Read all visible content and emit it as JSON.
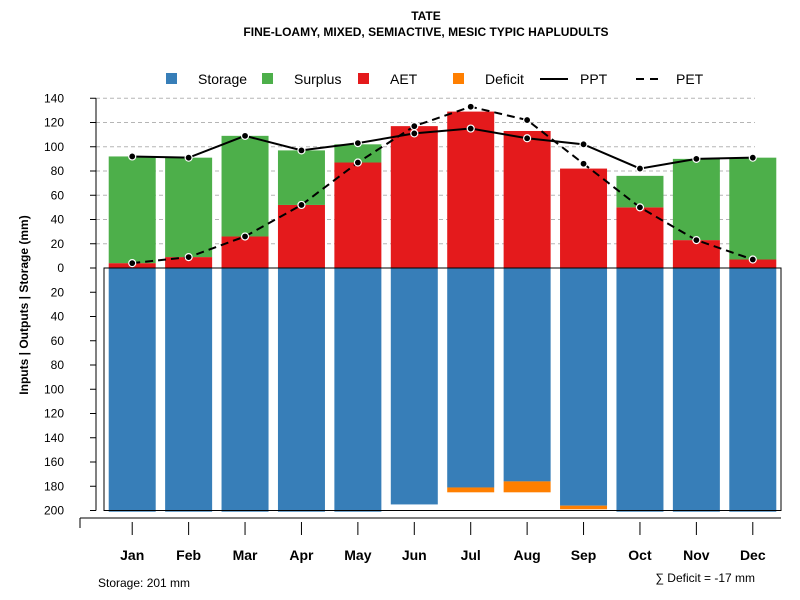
{
  "chart_data": {
    "type": "bar",
    "title": "TATE",
    "subtitle": "FINE-LOAMY, MIXED, SEMIACTIVE, MESIC TYPIC HAPLUDULTS",
    "ylabel": "Inputs | Outputs | Storage    (mm)",
    "ylim": [
      -200,
      140
    ],
    "y_ticks": [
      140,
      120,
      100,
      80,
      60,
      40,
      20,
      0,
      -20,
      -40,
      -60,
      -80,
      -100,
      -120,
      -140,
      -160,
      -180,
      -200
    ],
    "y_tick_labels": [
      "140",
      "120",
      "100",
      "80",
      "60",
      "40",
      "20",
      "0",
      "20",
      "40",
      "60",
      "80",
      "100",
      "120",
      "140",
      "160",
      "180",
      "200"
    ],
    "categories": [
      "Jan",
      "Feb",
      "Mar",
      "Apr",
      "May",
      "Jun",
      "Jul",
      "Aug",
      "Sep",
      "Oct",
      "Nov",
      "Dec"
    ],
    "series": [
      {
        "name": "Storage",
        "color": "#377eb8",
        "values": [
          201,
          201,
          201,
          201,
          201,
          195,
          181,
          176,
          196,
          201,
          201,
          201
        ]
      },
      {
        "name": "Surplus",
        "color": "#4daf4a",
        "values": [
          88,
          82,
          83,
          45,
          15,
          0,
          0,
          0,
          0,
          26,
          67,
          84
        ]
      },
      {
        "name": "AET",
        "color": "#e41a1c",
        "values": [
          4,
          9,
          26,
          52,
          87,
          117,
          129,
          113,
          82,
          50,
          23,
          7
        ]
      },
      {
        "name": "Deficit",
        "color": "#ff7f00",
        "values": [
          0,
          0,
          0,
          0,
          0,
          0,
          4,
          9,
          3,
          0,
          0,
          0
        ]
      },
      {
        "name": "PPT",
        "color": "#000000",
        "style": "solid",
        "values": [
          92,
          91,
          109,
          97,
          103,
          111,
          115,
          107,
          102,
          82,
          90,
          91
        ]
      },
      {
        "name": "PET",
        "color": "#000000",
        "style": "dashed",
        "values": [
          4,
          9,
          26,
          52,
          87,
          117,
          133,
          122,
          86,
          50,
          23,
          7
        ]
      }
    ],
    "legend": [
      "Storage",
      "Surplus",
      "AET",
      "Deficit",
      "PPT",
      "PET"
    ],
    "legend_position": "top",
    "grid": "horizontal dashed",
    "annotations": {
      "storage": "Storage: 201 mm",
      "deficit": "∑ Deficit = -17 mm"
    }
  }
}
